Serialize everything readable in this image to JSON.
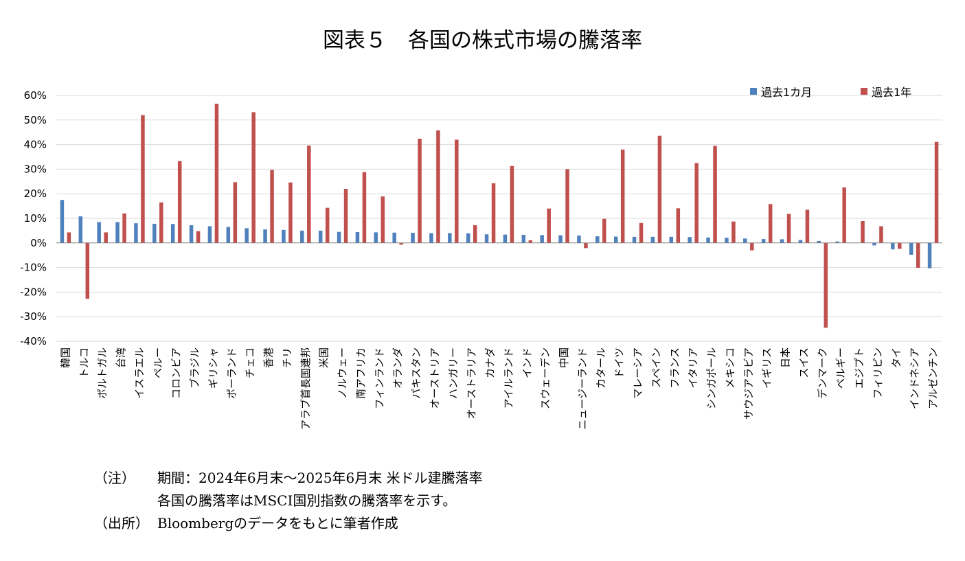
{
  "title": "図表５　各国の株式市場の騰落率",
  "notes": [
    {
      "label": "（注）",
      "text": "期間：2024年6月末〜2025年6月末 米ドル建騰落率"
    },
    {
      "label": "",
      "text": "各国の騰落率はMSCI国別指数の騰落率を示す。"
    },
    {
      "label": "（出所）",
      "text": "Bloombergのデータをもとに筆者作成"
    }
  ],
  "colors": {
    "series1": "#4F81BD",
    "series2": "#C0504D",
    "grid": "#D9D9D9",
    "axis": "#808080"
  },
  "chart_data": {
    "type": "bar",
    "ylim": [
      -0.4,
      0.6
    ],
    "yticks": [
      {
        "value": 0.6,
        "label": "60%"
      },
      {
        "value": 0.5,
        "label": "50%"
      },
      {
        "value": 0.4,
        "label": "40%"
      },
      {
        "value": 0.3,
        "label": "30%"
      },
      {
        "value": 0.2,
        "label": "20%"
      },
      {
        "value": 0.1,
        "label": "10%"
      },
      {
        "value": 0.0,
        "label": "0%"
      },
      {
        "value": -0.1,
        "label": "-10%"
      },
      {
        "value": -0.2,
        "label": "-20%"
      },
      {
        "value": -0.3,
        "label": "-30%"
      },
      {
        "value": -0.4,
        "label": "-40%"
      }
    ],
    "grid": true,
    "legend_position": "top-right",
    "categories": [
      "韓国",
      "トルコ",
      "ポルトガル",
      "台湾",
      "イスラエル",
      "ペルー",
      "コロンビア",
      "ブラジル",
      "ギリシャ",
      "ポーランド",
      "チェコ",
      "香港",
      "チリ",
      "アラブ首長国連邦",
      "米国",
      "ノルウェー",
      "南アフリカ",
      "フィンランド",
      "オランダ",
      "パキスタン",
      "オーストリア",
      "ハンガリー",
      "オーストラリア",
      "カナダ",
      "アイルランド",
      "インド",
      "スウェーデン",
      "中国",
      "ニュージーランド",
      "カタール",
      "ドイツ",
      "マレーシア",
      "スペイン",
      "フランス",
      "イタリア",
      "シンガポール",
      "メキシコ",
      "サウジアラビア",
      "イギリス",
      "日本",
      "スイス",
      "デンマーク",
      "ベルギー",
      "エジプト",
      "フィリピン",
      "タイ",
      "インドネシア",
      "アルゼンチン"
    ],
    "series": [
      {
        "name": "過去1カ月",
        "values": [
          0.175,
          0.108,
          0.085,
          0.085,
          0.08,
          0.078,
          0.077,
          0.072,
          0.068,
          0.065,
          0.06,
          0.055,
          0.053,
          0.05,
          0.05,
          0.045,
          0.044,
          0.043,
          0.042,
          0.041,
          0.04,
          0.04,
          0.039,
          0.035,
          0.034,
          0.033,
          0.032,
          0.031,
          0.03,
          0.027,
          0.026,
          0.025,
          0.025,
          0.025,
          0.024,
          0.022,
          0.021,
          0.018,
          0.016,
          0.015,
          0.012,
          0.008,
          0.006,
          0.001,
          -0.01,
          -0.026,
          -0.048,
          -0.103
        ]
      },
      {
        "name": "過去1年",
        "values": [
          0.043,
          -0.227,
          0.043,
          0.12,
          0.52,
          0.165,
          0.333,
          0.048,
          0.566,
          0.247,
          0.532,
          0.297,
          0.246,
          0.396,
          0.143,
          0.22,
          0.288,
          0.189,
          -0.007,
          0.424,
          0.458,
          0.42,
          0.072,
          0.243,
          0.313,
          0.011,
          0.14,
          0.3,
          -0.021,
          0.098,
          0.38,
          0.081,
          0.436,
          0.141,
          0.325,
          0.395,
          0.087,
          -0.03,
          0.158,
          0.118,
          0.135,
          -0.345,
          0.226,
          0.089,
          0.068,
          -0.024,
          -0.101,
          0.411
        ]
      }
    ]
  }
}
